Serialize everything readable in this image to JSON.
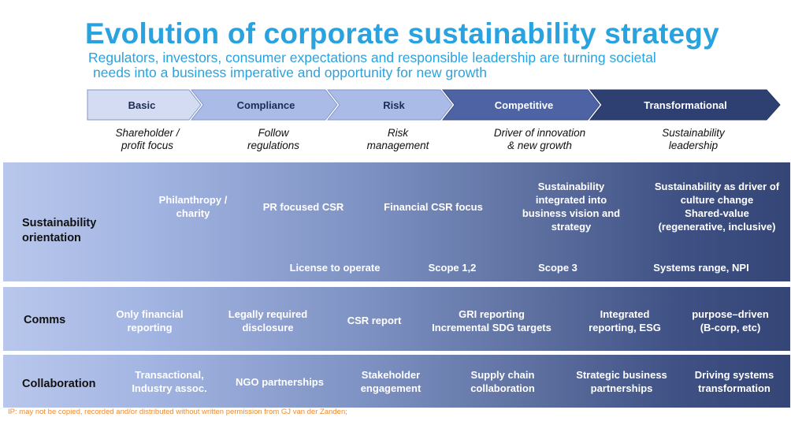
{
  "title": "Evolution of corporate sustainability strategy",
  "subtitle_line1": "Regulators, investors, consumer expectations and responsible leadership are turning societal",
  "subtitle_line2": "needs into a business imperative and opportunity for new growth",
  "stages": [
    {
      "label": "Basic",
      "desc1": "Shareholder /",
      "desc2": "profit focus"
    },
    {
      "label": "Compliance",
      "desc1": "Follow",
      "desc2": "regulations"
    },
    {
      "label": "Risk",
      "desc1": "Risk",
      "desc2": "management"
    },
    {
      "label": "Competitive",
      "desc1": "Driver of innovation",
      "desc2": "& new growth"
    },
    {
      "label": "Transformational",
      "desc1": "Sustainability",
      "desc2": "leadership"
    }
  ],
  "colors": {
    "title": "#29a3e0",
    "chevron_light": "#d3dcf2",
    "chevron_mid": "#a9bbe6",
    "chevron_dark": "#4e63a3",
    "chevron_darkest": "#2e3f72",
    "copyright": "#f08a2d"
  },
  "rows": {
    "orientation": {
      "label1": "Sustainability",
      "label2": "orientation",
      "top": [
        [
          "Philanthropy /",
          "charity"
        ],
        [
          "PR focused CSR"
        ],
        [
          "Financial CSR focus"
        ],
        [
          "Sustainability",
          "integrated into",
          "business  vision and",
          "strategy"
        ],
        [
          "Sustainability as driver of",
          "culture change",
          "Shared-value",
          "(regenerative, inclusive)"
        ]
      ],
      "bottom": [
        "License to operate",
        "Scope 1,2",
        "Scope 3",
        "Systems range, NPI"
      ]
    },
    "comms": {
      "label": "Comms",
      "items": [
        [
          "Only financial",
          "reporting"
        ],
        [
          "Legally required",
          "disclosure"
        ],
        [
          "CSR report"
        ],
        [
          "GRI reporting",
          "Incremental SDG targets"
        ],
        [
          "Integrated",
          "reporting, ESG"
        ],
        [
          "purpose–driven",
          "(B-corp, etc)"
        ]
      ]
    },
    "collaboration": {
      "label": "Collaboration",
      "items": [
        [
          "Transactional,",
          "Industry assoc."
        ],
        [
          "NGO partnerships"
        ],
        [
          "Stakeholder",
          "engagement"
        ],
        [
          "Supply chain",
          "collaboration"
        ],
        [
          "Strategic business",
          "partnerships"
        ],
        [
          "Driving systems",
          "transformation"
        ]
      ]
    }
  },
  "copyright": "IP: may not be copied, recorded and/or distributed without written permission from GJ van der Zanden;"
}
